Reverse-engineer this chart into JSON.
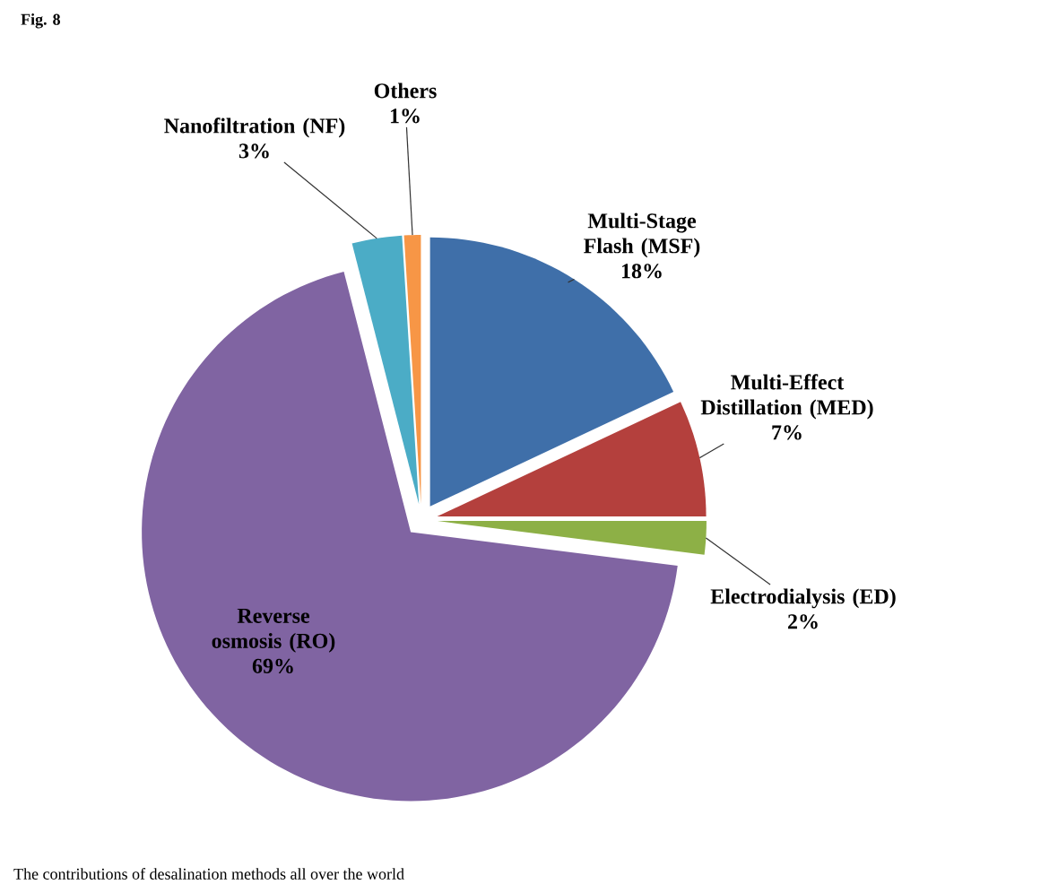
{
  "chart_data": {
    "type": "pie",
    "title": "Fig. 8",
    "categories": [
      "Multi-Stage Flash (MSF)",
      "Multi-Effect Distillation (MED)",
      "Electrodialysis (ED)",
      "Reverse osmosis (RO)",
      "Nanofiltration (NF)",
      "Others"
    ],
    "values": [
      18,
      7,
      2,
      69,
      3,
      1
    ],
    "value_labels": [
      "18%",
      "7%",
      "2%",
      "69%",
      "3%",
      "1%"
    ],
    "colors": [
      "#3f6fa9",
      "#b4403d",
      "#8db046",
      "#8064a2",
      "#4bacc6",
      "#f79646"
    ],
    "annotations": [
      "The contributions of desalination methods all over the world"
    ]
  }
}
